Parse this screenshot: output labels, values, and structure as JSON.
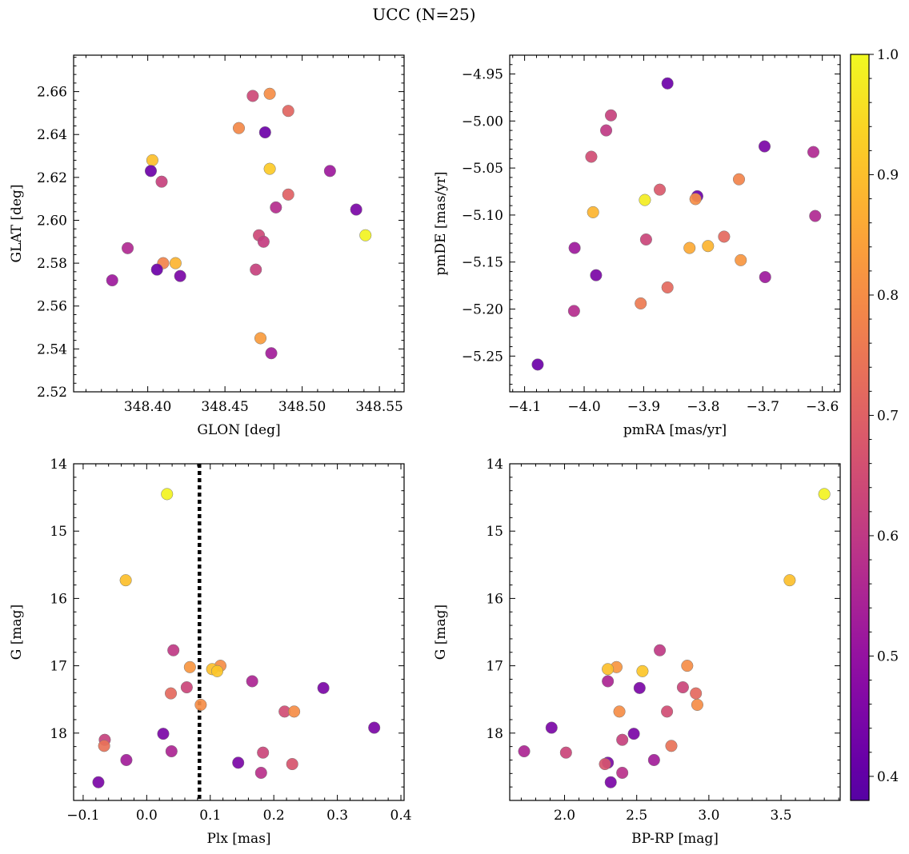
{
  "figure": {
    "title": "UCC (N=25)"
  },
  "colorbar": {
    "colormap": "plasma",
    "range": [
      0.38,
      1.0
    ],
    "ticks": [
      "0.4",
      "0.5",
      "0.6",
      "0.7",
      "0.8",
      "0.9",
      "1.0"
    ],
    "tick_values": [
      0.4,
      0.5,
      0.6,
      0.7,
      0.8,
      0.9,
      1.0
    ]
  },
  "chart_data": [
    {
      "type": "scatter",
      "xlabel": "GLON [deg]",
      "ylabel": "GLAT [deg]",
      "xlim": [
        348.352,
        348.566
      ],
      "ylim": [
        2.52,
        2.677
      ],
      "xticks": [
        348.4,
        348.45,
        348.5,
        348.55
      ],
      "xticklabels": [
        "348.40",
        "348.45",
        "348.50",
        "348.55"
      ],
      "yticks": [
        2.52,
        2.54,
        2.56,
        2.58,
        2.6,
        2.62,
        2.64,
        2.66
      ],
      "yticklabels": [
        "2.52",
        "2.54",
        "2.56",
        "2.58",
        "2.60",
        "2.62",
        "2.64",
        "2.66"
      ],
      "points": [
        {
          "x": 348.468,
          "y": 2.658,
          "c": 0.64
        },
        {
          "x": 348.479,
          "y": 2.659,
          "c": 0.8
        },
        {
          "x": 348.491,
          "y": 2.651,
          "c": 0.71
        },
        {
          "x": 348.459,
          "y": 2.643,
          "c": 0.79
        },
        {
          "x": 348.476,
          "y": 2.641,
          "c": 0.42
        },
        {
          "x": 348.403,
          "y": 2.628,
          "c": 0.9
        },
        {
          "x": 348.402,
          "y": 2.623,
          "c": 0.42
        },
        {
          "x": 348.479,
          "y": 2.624,
          "c": 0.92
        },
        {
          "x": 348.518,
          "y": 2.623,
          "c": 0.52
        },
        {
          "x": 348.409,
          "y": 2.618,
          "c": 0.62
        },
        {
          "x": 348.491,
          "y": 2.612,
          "c": 0.7
        },
        {
          "x": 348.483,
          "y": 2.606,
          "c": 0.57
        },
        {
          "x": 348.535,
          "y": 2.605,
          "c": 0.45
        },
        {
          "x": 348.541,
          "y": 2.593,
          "c": 0.99
        },
        {
          "x": 348.472,
          "y": 2.593,
          "c": 0.64
        },
        {
          "x": 348.475,
          "y": 2.59,
          "c": 0.61
        },
        {
          "x": 348.387,
          "y": 2.587,
          "c": 0.56
        },
        {
          "x": 348.41,
          "y": 2.58,
          "c": 0.78
        },
        {
          "x": 348.418,
          "y": 2.58,
          "c": 0.88
        },
        {
          "x": 348.406,
          "y": 2.577,
          "c": 0.42
        },
        {
          "x": 348.47,
          "y": 2.577,
          "c": 0.62
        },
        {
          "x": 348.421,
          "y": 2.574,
          "c": 0.45
        },
        {
          "x": 348.377,
          "y": 2.572,
          "c": 0.52
        },
        {
          "x": 348.473,
          "y": 2.545,
          "c": 0.83
        },
        {
          "x": 348.48,
          "y": 2.538,
          "c": 0.53
        }
      ]
    },
    {
      "type": "scatter",
      "xlabel": "pmRA [mas/yr]",
      "ylabel": "pmDE [mas/yr]",
      "xlim": [
        -4.125,
        -3.57
      ],
      "ylim": [
        -5.288,
        -4.93
      ],
      "xticks": [
        -4.1,
        -4.0,
        -3.9,
        -3.8,
        -3.7,
        -3.6
      ],
      "xticklabels": [
        "−4.1",
        "−4.0",
        "−3.9",
        "−3.8",
        "−3.7",
        "−3.6"
      ],
      "yticks": [
        -4.95,
        -5.0,
        -5.05,
        -5.1,
        -5.15,
        -5.2,
        -5.25
      ],
      "yticklabels": [
        "−4.95",
        "−5.00",
        "−5.05",
        "−5.10",
        "−5.15",
        "−5.20",
        "−5.25"
      ],
      "points": [
        {
          "x": -3.86,
          "y": -4.96,
          "c": 0.42
        },
        {
          "x": -3.955,
          "y": -4.994,
          "c": 0.62
        },
        {
          "x": -3.963,
          "y": -5.01,
          "c": 0.6
        },
        {
          "x": -3.697,
          "y": -5.027,
          "c": 0.45
        },
        {
          "x": -3.615,
          "y": -5.033,
          "c": 0.56
        },
        {
          "x": -3.988,
          "y": -5.038,
          "c": 0.65
        },
        {
          "x": -3.74,
          "y": -5.062,
          "c": 0.78
        },
        {
          "x": -3.873,
          "y": -5.073,
          "c": 0.68
        },
        {
          "x": -3.81,
          "y": -5.08,
          "c": 0.42
        },
        {
          "x": -3.813,
          "y": -5.083,
          "c": 0.8
        },
        {
          "x": -3.898,
          "y": -5.084,
          "c": 0.98
        },
        {
          "x": -3.985,
          "y": -5.097,
          "c": 0.88
        },
        {
          "x": -3.612,
          "y": -5.101,
          "c": 0.56
        },
        {
          "x": -3.765,
          "y": -5.123,
          "c": 0.72
        },
        {
          "x": -3.896,
          "y": -5.126,
          "c": 0.63
        },
        {
          "x": -4.016,
          "y": -5.135,
          "c": 0.52
        },
        {
          "x": -3.792,
          "y": -5.133,
          "c": 0.88
        },
        {
          "x": -3.823,
          "y": -5.135,
          "c": 0.86
        },
        {
          "x": -3.737,
          "y": -5.148,
          "c": 0.82
        },
        {
          "x": -3.98,
          "y": -5.164,
          "c": 0.45
        },
        {
          "x": -3.696,
          "y": -5.166,
          "c": 0.52
        },
        {
          "x": -3.86,
          "y": -5.177,
          "c": 0.72
        },
        {
          "x": -3.905,
          "y": -5.194,
          "c": 0.76
        },
        {
          "x": -4.017,
          "y": -5.202,
          "c": 0.57
        },
        {
          "x": -4.078,
          "y": -5.259,
          "c": 0.42
        }
      ]
    },
    {
      "type": "scatter",
      "xlabel": "Plx [mas]",
      "ylabel": "G [mag]",
      "xlim": [
        -0.115,
        0.405
      ],
      "ylim": [
        19.0,
        14.0
      ],
      "y_inverted": true,
      "vline": {
        "x": 0.083,
        "style": "dotted"
      },
      "xticks": [
        -0.1,
        0.0,
        0.1,
        0.2,
        0.3,
        0.4
      ],
      "xticklabels": [
        "−0.1",
        "0.0",
        "0.1",
        "0.2",
        "0.3",
        "0.4"
      ],
      "yticks": [
        14,
        15,
        16,
        17,
        18
      ],
      "yticklabels": [
        "14",
        "15",
        "16",
        "17",
        "18"
      ],
      "points": [
        {
          "x": 0.032,
          "y": 14.45,
          "c": 0.99
        },
        {
          "x": -0.033,
          "y": 15.73,
          "c": 0.9
        },
        {
          "x": 0.042,
          "y": 16.77,
          "c": 0.6
        },
        {
          "x": 0.116,
          "y": 17.0,
          "c": 0.8
        },
        {
          "x": 0.068,
          "y": 17.02,
          "c": 0.82
        },
        {
          "x": 0.103,
          "y": 17.05,
          "c": 0.9
        },
        {
          "x": 0.111,
          "y": 17.08,
          "c": 0.91
        },
        {
          "x": 0.166,
          "y": 17.23,
          "c": 0.55
        },
        {
          "x": 0.063,
          "y": 17.32,
          "c": 0.63
        },
        {
          "x": 0.278,
          "y": 17.33,
          "c": 0.45
        },
        {
          "x": 0.038,
          "y": 17.41,
          "c": 0.72
        },
        {
          "x": 0.085,
          "y": 17.58,
          "c": 0.8
        },
        {
          "x": 0.217,
          "y": 17.68,
          "c": 0.65
        },
        {
          "x": 0.232,
          "y": 17.68,
          "c": 0.8
        },
        {
          "x": 0.358,
          "y": 17.92,
          "c": 0.45
        },
        {
          "x": 0.026,
          "y": 18.01,
          "c": 0.45
        },
        {
          "x": -0.066,
          "y": 18.1,
          "c": 0.62
        },
        {
          "x": -0.067,
          "y": 18.19,
          "c": 0.74
        },
        {
          "x": 0.039,
          "y": 18.27,
          "c": 0.55
        },
        {
          "x": 0.183,
          "y": 18.29,
          "c": 0.63
        },
        {
          "x": -0.032,
          "y": 18.4,
          "c": 0.53
        },
        {
          "x": 0.144,
          "y": 18.44,
          "c": 0.45
        },
        {
          "x": 0.229,
          "y": 18.46,
          "c": 0.67
        },
        {
          "x": 0.18,
          "y": 18.59,
          "c": 0.58
        },
        {
          "x": -0.076,
          "y": 18.73,
          "c": 0.45
        }
      ]
    },
    {
      "type": "scatter",
      "xlabel": "BP-RP [mag]",
      "ylabel": "G [mag]",
      "xlim": [
        1.62,
        3.91
      ],
      "ylim": [
        19.0,
        14.0
      ],
      "y_inverted": true,
      "xticks": [
        2.0,
        2.5,
        3.0,
        3.5
      ],
      "xticklabels": [
        "2.0",
        "2.5",
        "3.0",
        "3.5"
      ],
      "yticks": [
        14,
        15,
        16,
        17,
        18
      ],
      "yticklabels": [
        "14",
        "15",
        "16",
        "17",
        "18"
      ],
      "points": [
        {
          "x": 3.8,
          "y": 14.45,
          "c": 0.99
        },
        {
          "x": 3.56,
          "y": 15.73,
          "c": 0.9
        },
        {
          "x": 2.66,
          "y": 16.77,
          "c": 0.6
        },
        {
          "x": 2.85,
          "y": 17.0,
          "c": 0.8
        },
        {
          "x": 2.36,
          "y": 17.02,
          "c": 0.82
        },
        {
          "x": 2.3,
          "y": 17.05,
          "c": 0.9
        },
        {
          "x": 2.54,
          "y": 17.08,
          "c": 0.91
        },
        {
          "x": 2.3,
          "y": 17.23,
          "c": 0.55
        },
        {
          "x": 2.82,
          "y": 17.32,
          "c": 0.63
        },
        {
          "x": 2.52,
          "y": 17.33,
          "c": 0.45
        },
        {
          "x": 2.91,
          "y": 17.41,
          "c": 0.72
        },
        {
          "x": 2.92,
          "y": 17.58,
          "c": 0.8
        },
        {
          "x": 2.71,
          "y": 17.68,
          "c": 0.65
        },
        {
          "x": 2.38,
          "y": 17.68,
          "c": 0.8
        },
        {
          "x": 1.91,
          "y": 17.92,
          "c": 0.45
        },
        {
          "x": 2.48,
          "y": 18.01,
          "c": 0.45
        },
        {
          "x": 2.4,
          "y": 18.1,
          "c": 0.62
        },
        {
          "x": 2.74,
          "y": 18.19,
          "c": 0.74
        },
        {
          "x": 1.72,
          "y": 18.27,
          "c": 0.55
        },
        {
          "x": 2.01,
          "y": 18.29,
          "c": 0.63
        },
        {
          "x": 2.62,
          "y": 18.4,
          "c": 0.53
        },
        {
          "x": 2.3,
          "y": 18.44,
          "c": 0.45
        },
        {
          "x": 2.28,
          "y": 18.46,
          "c": 0.67
        },
        {
          "x": 2.4,
          "y": 18.59,
          "c": 0.58
        },
        {
          "x": 2.32,
          "y": 18.73,
          "c": 0.45
        }
      ]
    }
  ]
}
